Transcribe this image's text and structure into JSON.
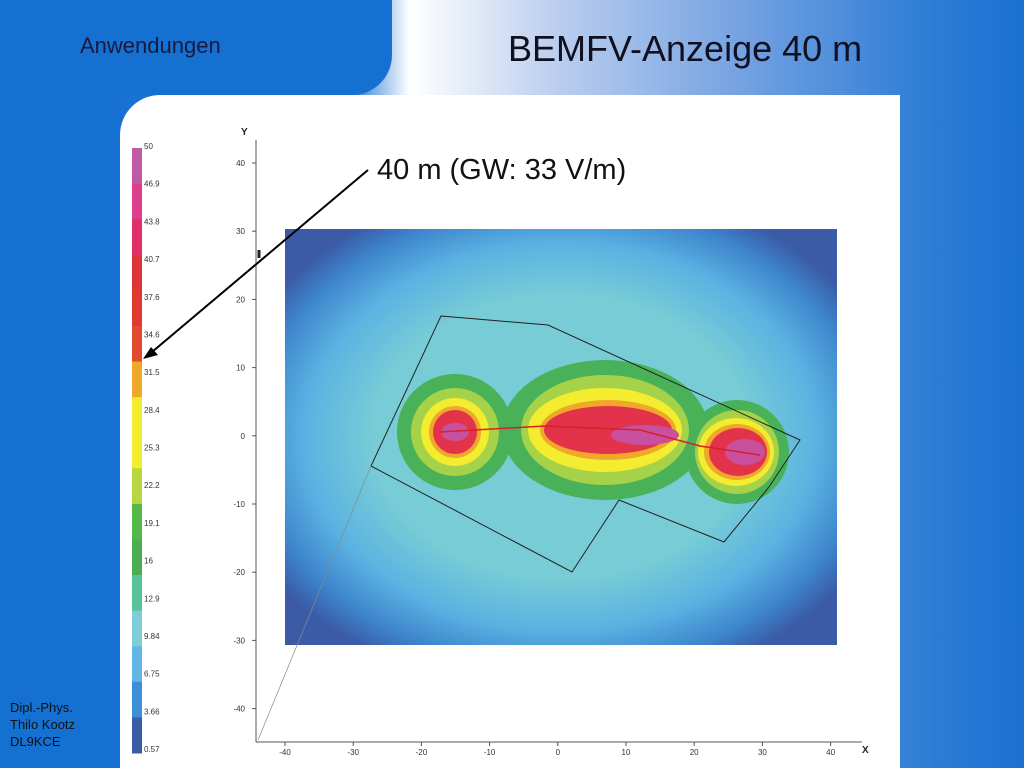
{
  "header": {
    "section": "Anwendungen",
    "title": "BEMFV-Anzeige 40 m"
  },
  "annotation": "40 m (GW: 33 V/m)",
  "author": {
    "line1": "Dipl.-Phys.",
    "line2": "Thilo Kootz",
    "line3": "DL9KCE"
  },
  "legend": {
    "labels": [
      "50",
      "46.9",
      "43.8",
      "40.7",
      "37.6",
      "34.6",
      "31.5",
      "28.4",
      "25.3",
      "22.2",
      "19.1",
      "16",
      "12.9",
      "9.84",
      "6.75",
      "3.66",
      "0.57"
    ],
    "colors": [
      "#c05aa6",
      "#de3f8a",
      "#e0306a",
      "#de3636",
      "#de3a30",
      "#e14a2c",
      "#f0a82a",
      "#f3ec2f",
      "#f3ec2f",
      "#b8d640",
      "#54b848",
      "#4aae4f",
      "#57c39a",
      "#7fcdd7",
      "#62b6e6",
      "#3d8fd8",
      "#3a5ea6"
    ]
  },
  "axes": {
    "x_label": "X",
    "y_label": "Y",
    "x_ticks": [
      "-40",
      "-30",
      "-20",
      "-10",
      "0",
      "10",
      "20",
      "30",
      "40"
    ],
    "y_ticks": [
      "40",
      "30",
      "20",
      "10",
      "0",
      "-10",
      "-20",
      "-30",
      "-40"
    ]
  },
  "colors": {
    "background_blue": "#1470d1",
    "panel": "#ffffff"
  }
}
